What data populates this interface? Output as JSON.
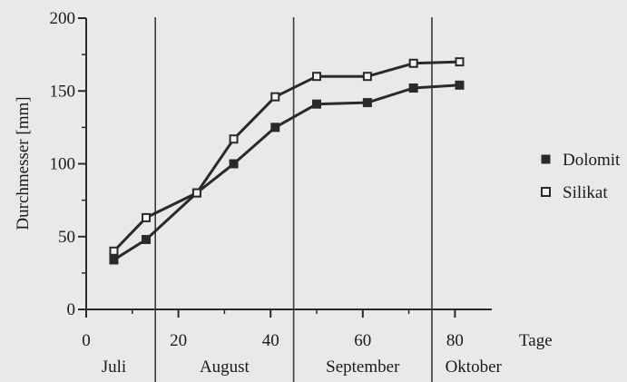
{
  "chart_data": {
    "type": "line",
    "title": "",
    "xlabel": "Tage",
    "ylabel": "Durchmesser [mm]",
    "xlim": [
      0,
      88
    ],
    "ylim": [
      0,
      200
    ],
    "x_ticks": [
      0,
      20,
      40,
      60,
      80
    ],
    "x_minor_ticks": [
      10,
      30,
      50,
      70
    ],
    "y_ticks": [
      0,
      50,
      100,
      150,
      200
    ],
    "y_minor_ticks": [
      25,
      75,
      125,
      175
    ],
    "grid": false,
    "legend_position": "right",
    "month_dividers": [
      15,
      45,
      75
    ],
    "months": [
      {
        "label": "Juli",
        "center": 6
      },
      {
        "label": "August",
        "center": 30
      },
      {
        "label": "September",
        "center": 60
      },
      {
        "label": "Oktober",
        "center": 84
      }
    ],
    "series": [
      {
        "name": "Dolomit",
        "marker": "filled-square",
        "color": "#2a2a2a",
        "x": [
          6,
          13,
          24,
          32,
          41,
          50,
          61,
          71,
          81
        ],
        "y": [
          34,
          48,
          80,
          100,
          125,
          141,
          142,
          152,
          154
        ]
      },
      {
        "name": "Silikat",
        "marker": "open-square",
        "color": "#2a2a2a",
        "x": [
          6,
          13,
          24,
          32,
          41,
          50,
          61,
          71,
          81
        ],
        "y": [
          40,
          63,
          80,
          117,
          146,
          160,
          160,
          169,
          170
        ]
      }
    ]
  }
}
